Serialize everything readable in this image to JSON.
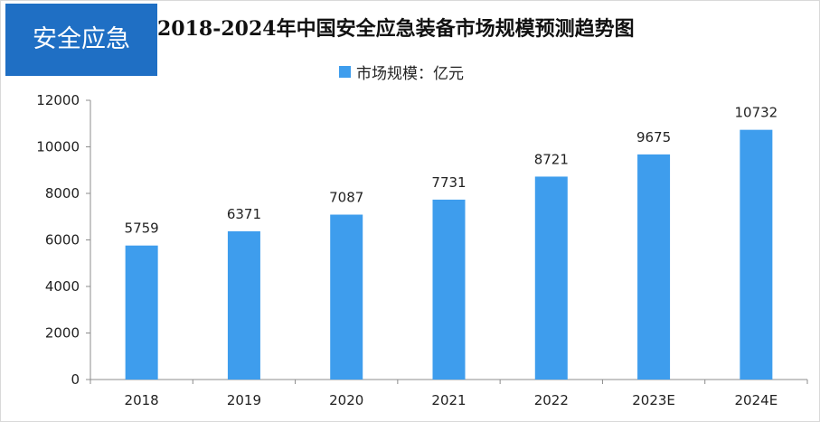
{
  "badge": {
    "label": "安全应急"
  },
  "chart_data": {
    "type": "bar",
    "title": "2018-2024年中国安全应急装备市场规模预测趋势图",
    "categories": [
      "2018",
      "2019",
      "2020",
      "2021",
      "2022",
      "2023E",
      "2024E"
    ],
    "series": [
      {
        "name": "市场规模：亿元",
        "values": [
          5759,
          6371,
          7087,
          7731,
          8721,
          9675,
          10732
        ],
        "color": "#3e9ded"
      }
    ],
    "ylim": [
      0,
      12000
    ],
    "yticks": [
      0,
      2000,
      4000,
      6000,
      8000,
      10000,
      12000
    ],
    "xlabel": "",
    "ylabel": "",
    "grid": false,
    "legend": "top-center"
  }
}
